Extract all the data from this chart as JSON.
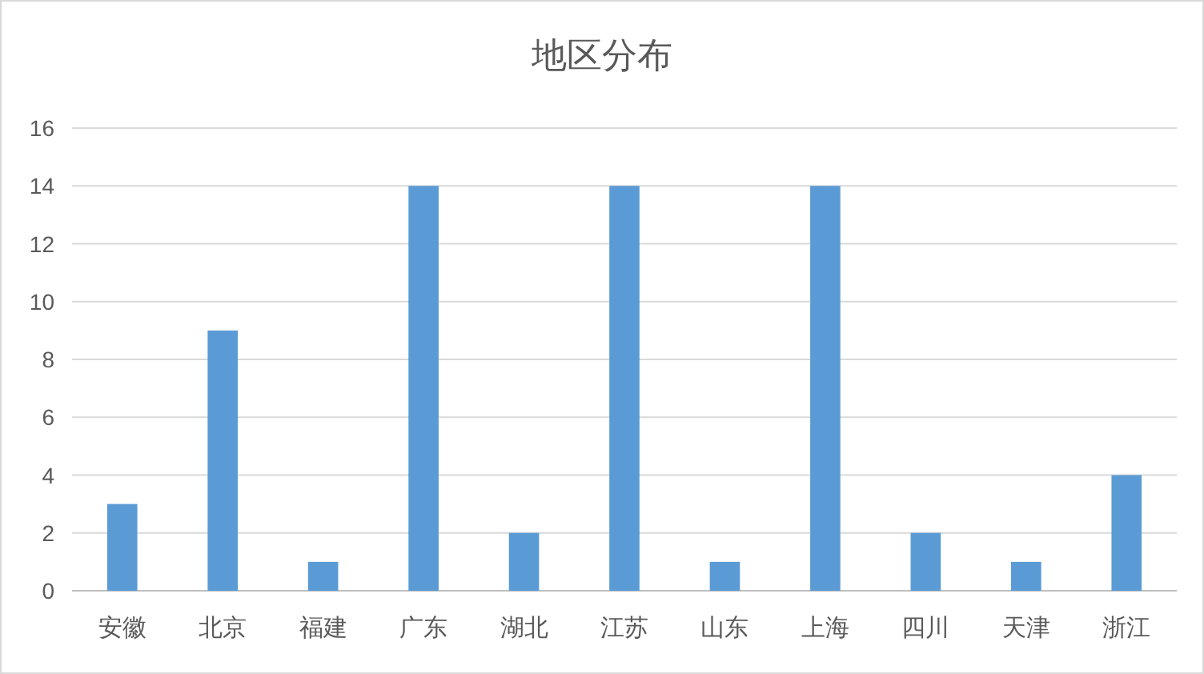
{
  "chart_data": {
    "type": "bar",
    "title": "地区分布",
    "categories": [
      "安徽",
      "北京",
      "福建",
      "广东",
      "湖北",
      "江苏",
      "山东",
      "上海",
      "四川",
      "天津",
      "浙江"
    ],
    "values": [
      3,
      9,
      1,
      14,
      2,
      14,
      1,
      14,
      2,
      1,
      4
    ],
    "color": "#5b9bd5",
    "ylim": [
      0,
      16
    ],
    "yticks": [
      0,
      2,
      4,
      6,
      8,
      10,
      12,
      14,
      16
    ],
    "grid": "y"
  }
}
